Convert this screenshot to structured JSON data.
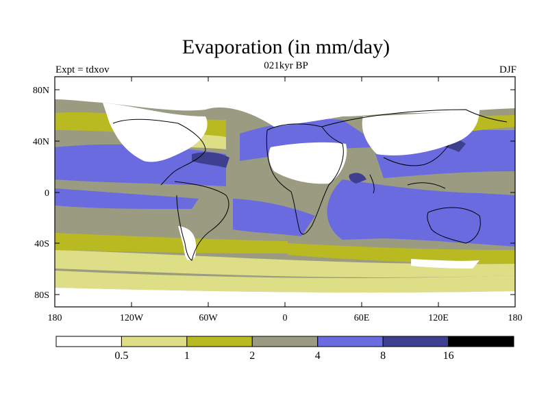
{
  "title": "Evaporation (in mm/day)",
  "subtitle": "021kyr BP",
  "left_label": "Expt = tdxov",
  "right_label": "DJF",
  "axes": {
    "x_ticks": [
      "180",
      "120W",
      "60W",
      "0",
      "60E",
      "120E",
      "180"
    ],
    "y_ticks": [
      "80N",
      "40N",
      "0",
      "40S",
      "80S"
    ]
  },
  "colorbar": {
    "colors": [
      "#ffffff",
      "#dede86",
      "#b9b922",
      "#9b9b82",
      "#6b6be0",
      "#3f3f8f",
      "#000000"
    ],
    "labels": [
      "0.5",
      "1",
      "2",
      "4",
      "8",
      "16"
    ]
  }
}
